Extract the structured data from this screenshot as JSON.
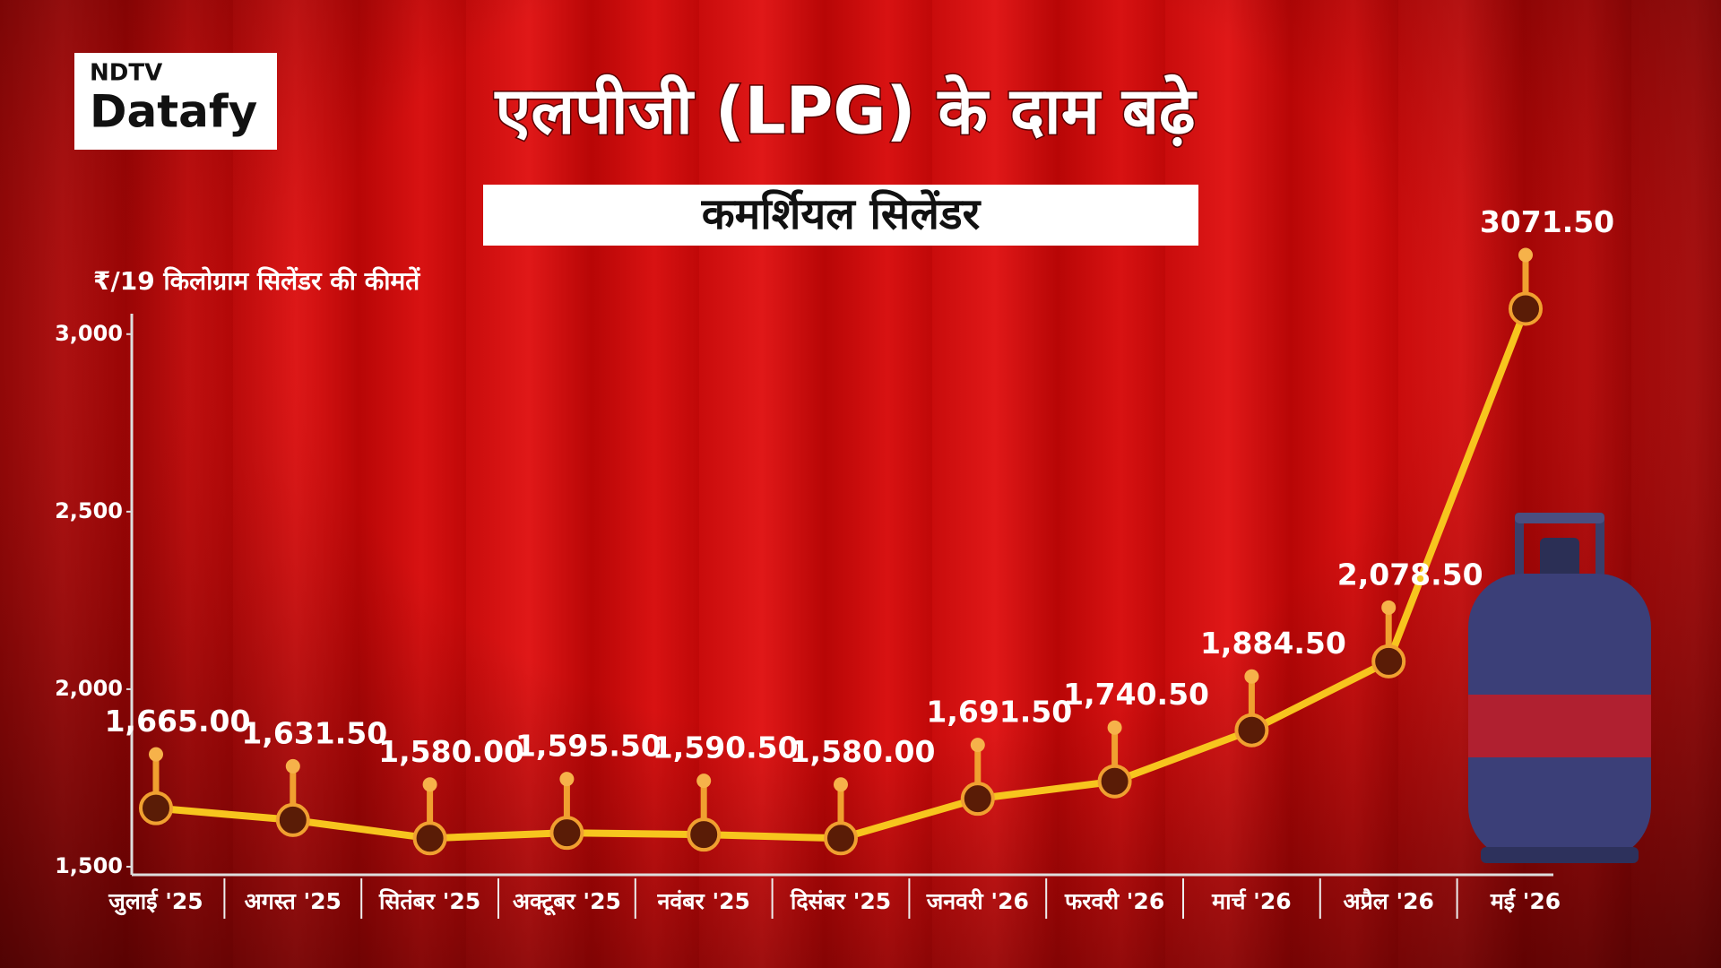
{
  "logo": {
    "top": "NDTV",
    "bottom": "Datafy"
  },
  "chart_data": {
    "type": "line",
    "title": "एलपीजी (LPG) के दाम बढ़े",
    "subtitle": "कमर्शियल सिलेंडर",
    "y_label": "₹/19 किलोग्राम सिलेंडर की कीमतें",
    "categories": [
      "जुलाई '25",
      "अगस्त '25",
      "सितंबर '25",
      "अक्टूबर '25",
      "नवंबर '25",
      "दिसंबर '25",
      "जनवरी '26",
      "फरवरी '26",
      "मार्च '26",
      "अप्रैल '26",
      "मई '26"
    ],
    "values": [
      1665.0,
      1631.5,
      1580.0,
      1595.5,
      1590.5,
      1580.0,
      1691.5,
      1740.5,
      1884.5,
      2078.5,
      3071.5
    ],
    "value_labels": [
      "1,665.00",
      "1,631.50",
      "1,580.00",
      "1,595.50",
      "1,590.50",
      "1,580.00",
      "1,691.50",
      "1,740.50",
      "1,884.50",
      "2,078.50",
      "3071.50"
    ],
    "color": "#f7c51e",
    "ylim": [
      1500,
      3050
    ],
    "yticks": [
      {
        "value": 1500,
        "label": "1,500"
      },
      {
        "value": 2000,
        "label": "2,000"
      },
      {
        "value": 2500,
        "label": "2,500"
      },
      {
        "value": 3000,
        "label": "3,000"
      }
    ]
  }
}
